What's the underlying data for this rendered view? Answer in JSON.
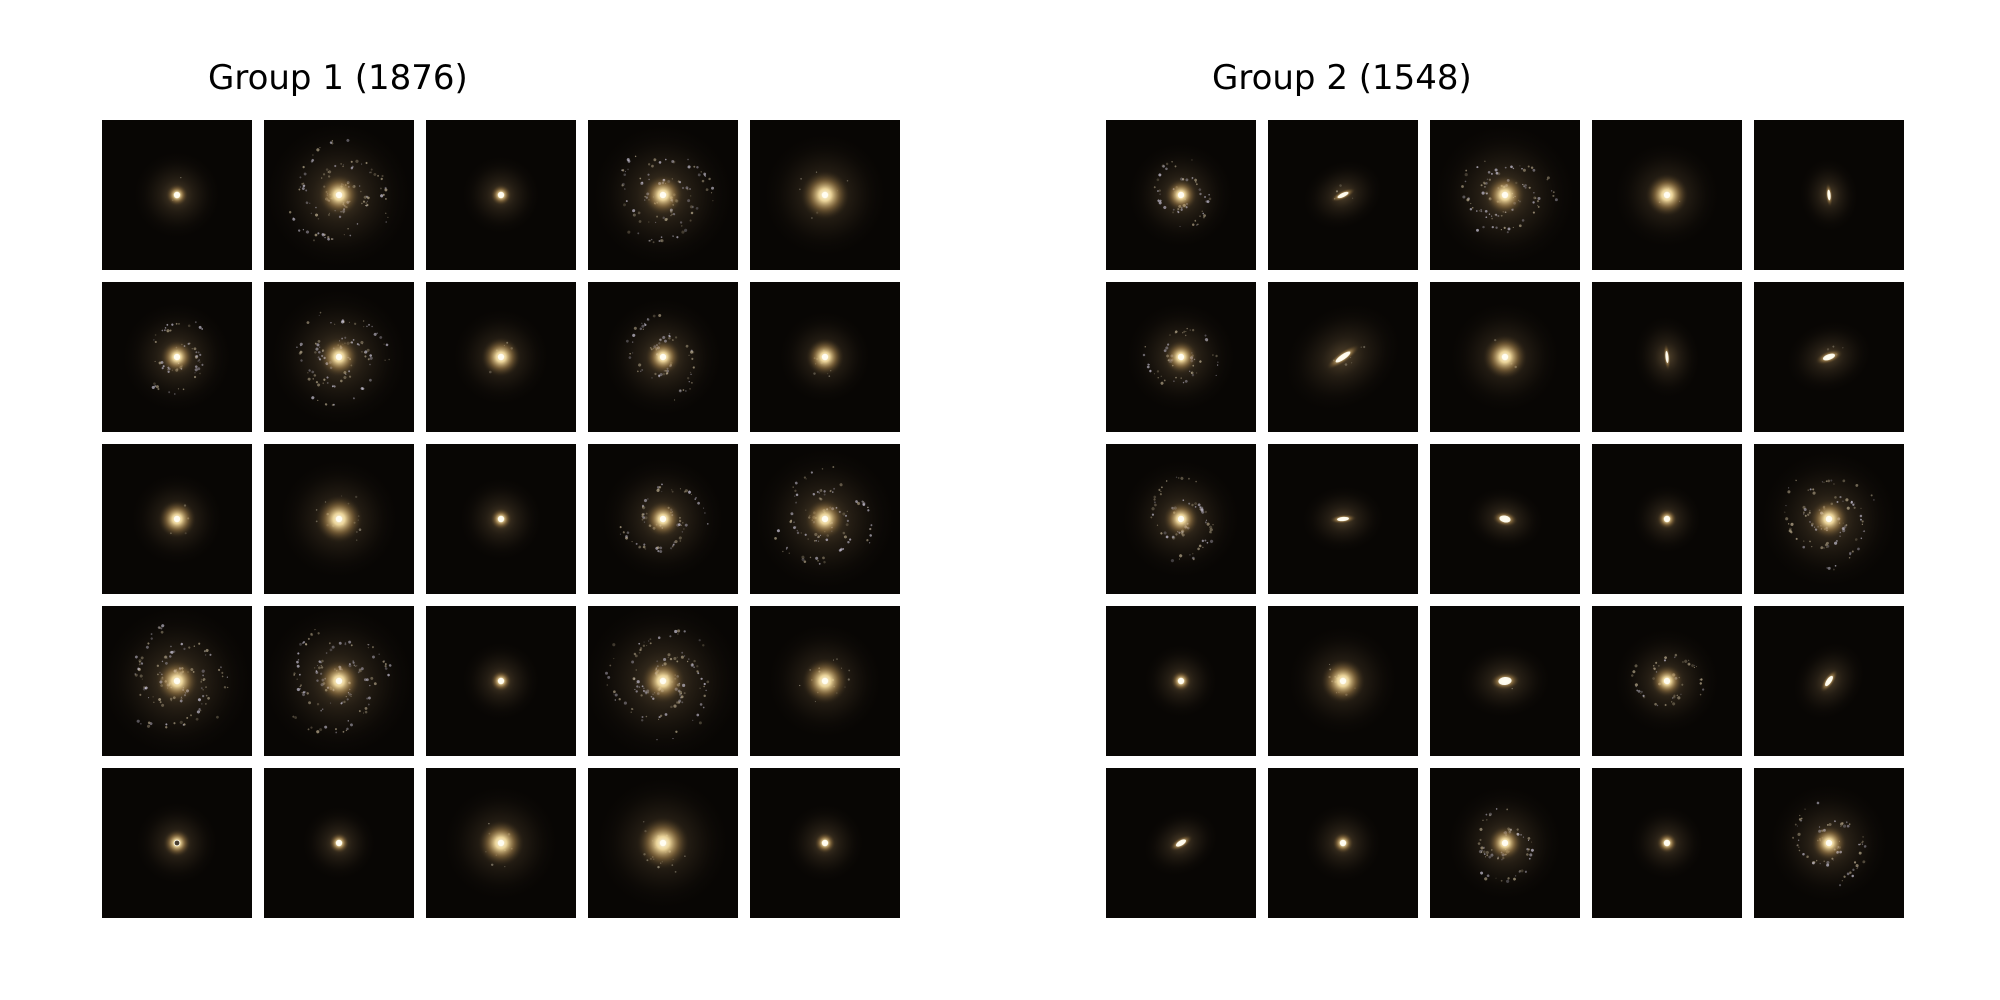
{
  "groups": [
    {
      "title": "Group 1 (1876)",
      "tiles": [
        {
          "type": "compact",
          "size": 0.5,
          "arms": 0,
          "tilt": 0,
          "angle": 0,
          "dust": 0.1
        },
        {
          "type": "spiral",
          "size": 1.15,
          "arms": 3,
          "tilt": 0.0,
          "angle": 35,
          "dust": 1.0
        },
        {
          "type": "compact",
          "size": 0.4,
          "arms": 0,
          "tilt": 0,
          "angle": 0,
          "dust": 0.0
        },
        {
          "type": "spiral",
          "size": 1.1,
          "arms": 3,
          "tilt": 0.0,
          "angle": 10,
          "dust": 0.9
        },
        {
          "type": "halo",
          "size": 0.9,
          "arms": 0,
          "tilt": 0,
          "angle": 0,
          "dust": 0.2
        },
        {
          "type": "spiral",
          "size": 0.75,
          "arms": 2,
          "tilt": 0.0,
          "angle": 70,
          "dust": 0.8
        },
        {
          "type": "spiral",
          "size": 1.05,
          "arms": 3,
          "tilt": 0.0,
          "angle": 120,
          "dust": 0.9
        },
        {
          "type": "halo",
          "size": 0.6,
          "arms": 0,
          "tilt": 0,
          "angle": 0,
          "dust": 0.2
        },
        {
          "type": "spiral",
          "size": 0.85,
          "arms": 2,
          "tilt": 0.0,
          "angle": 200,
          "dust": 0.8
        },
        {
          "type": "halo",
          "size": 0.55,
          "arms": 0,
          "tilt": 0,
          "angle": 0,
          "dust": 0.4
        },
        {
          "type": "halo",
          "size": 0.55,
          "arms": 0,
          "tilt": 0,
          "angle": 0,
          "dust": 0.2
        },
        {
          "type": "halo",
          "size": 0.85,
          "arms": 0,
          "tilt": 0,
          "angle": 0,
          "dust": 0.5
        },
        {
          "type": "compact",
          "size": 0.45,
          "arms": 0,
          "tilt": 0,
          "angle": 0,
          "dust": 0.0
        },
        {
          "type": "spiral",
          "size": 0.9,
          "arms": 2,
          "tilt": 0.0,
          "angle": 300,
          "dust": 0.8
        },
        {
          "type": "spiral",
          "size": 1.1,
          "arms": 3,
          "tilt": 0.0,
          "angle": 160,
          "dust": 0.9
        },
        {
          "type": "spiral",
          "size": 1.2,
          "arms": 3,
          "tilt": 0.0,
          "angle": 30,
          "dust": 1.0
        },
        {
          "type": "spiral",
          "size": 1.2,
          "arms": 3,
          "tilt": 0.0,
          "angle": 250,
          "dust": 1.0
        },
        {
          "type": "compact",
          "size": 0.4,
          "arms": 0,
          "tilt": 0,
          "angle": 0,
          "dust": 0.0
        },
        {
          "type": "spiral",
          "size": 1.3,
          "arms": 3,
          "tilt": 0.0,
          "angle": 90,
          "dust": 1.0
        },
        {
          "type": "halo",
          "size": 0.8,
          "arms": 0,
          "tilt": 0,
          "angle": 0,
          "dust": 0.5
        },
        {
          "type": "ring",
          "size": 0.45,
          "arms": 0,
          "tilt": 0,
          "angle": 0,
          "dust": 0.0
        },
        {
          "type": "compact",
          "size": 0.35,
          "arms": 0,
          "tilt": 0,
          "angle": 0,
          "dust": 0.0
        },
        {
          "type": "halo",
          "size": 0.8,
          "arms": 0,
          "tilt": 0,
          "angle": 0,
          "dust": 0.3
        },
        {
          "type": "halo",
          "size": 1.0,
          "arms": 0,
          "tilt": 0,
          "angle": 0,
          "dust": 0.5
        },
        {
          "type": "compact",
          "size": 0.4,
          "arms": 0,
          "tilt": 0,
          "angle": 0,
          "dust": 0.0
        }
      ]
    },
    {
      "title": "Group 2 (1548)",
      "tiles": [
        {
          "type": "spiral",
          "size": 0.7,
          "arms": 2,
          "tilt": 0.0,
          "angle": 40,
          "dust": 0.8
        },
        {
          "type": "edge",
          "size": 0.45,
          "arms": 0,
          "tilt": 0.35,
          "angle": -25,
          "dust": 0.2
        },
        {
          "type": "spiral",
          "size": 1.1,
          "arms": 3,
          "tilt": 0.6,
          "angle": 0,
          "dust": 0.9
        },
        {
          "type": "halo",
          "size": 0.7,
          "arms": 0,
          "tilt": 0,
          "angle": 0,
          "dust": 0.1
        },
        {
          "type": "edge",
          "size": 0.35,
          "arms": 0,
          "tilt": 0.3,
          "angle": 85,
          "dust": 0.0
        },
        {
          "type": "spiral",
          "size": 0.75,
          "arms": 2,
          "tilt": 0.0,
          "angle": 140,
          "dust": 0.7
        },
        {
          "type": "edge",
          "size": 0.9,
          "arms": 0,
          "tilt": 0.3,
          "angle": -35,
          "dust": 0.2
        },
        {
          "type": "halo",
          "size": 0.75,
          "arms": 0,
          "tilt": 0,
          "angle": 0,
          "dust": 0.1
        },
        {
          "type": "edge",
          "size": 0.45,
          "arms": 0,
          "tilt": 0.25,
          "angle": 85,
          "dust": 0.0
        },
        {
          "type": "edge",
          "size": 0.5,
          "arms": 0,
          "tilt": 0.45,
          "angle": -20,
          "dust": 0.2
        },
        {
          "type": "spiral",
          "size": 0.85,
          "arms": 2,
          "tilt": 0.0,
          "angle": 220,
          "dust": 0.8
        },
        {
          "type": "edge",
          "size": 0.45,
          "arms": 0,
          "tilt": 0.35,
          "angle": -5,
          "dust": 0.0
        },
        {
          "type": "edge",
          "size": 0.4,
          "arms": 0,
          "tilt": 0.6,
          "angle": 10,
          "dust": 0.0
        },
        {
          "type": "compact",
          "size": 0.3,
          "arms": 0,
          "tilt": 0,
          "angle": 0,
          "dust": 0.0
        },
        {
          "type": "spiral",
          "size": 1.05,
          "arms": 3,
          "tilt": 0.0,
          "angle": 100,
          "dust": 0.9
        },
        {
          "type": "compact",
          "size": 0.35,
          "arms": 0,
          "tilt": 0,
          "angle": 0,
          "dust": 0.0
        },
        {
          "type": "halo",
          "size": 0.75,
          "arms": 0,
          "tilt": 0,
          "angle": 0,
          "dust": 0.4
        },
        {
          "type": "edge",
          "size": 0.55,
          "arms": 0,
          "tilt": 0.6,
          "angle": -5,
          "dust": 0.1
        },
        {
          "type": "spiral",
          "size": 0.7,
          "arms": 2,
          "tilt": 0.0,
          "angle": 320,
          "dust": 0.7
        },
        {
          "type": "edge",
          "size": 0.45,
          "arms": 0,
          "tilt": 0.4,
          "angle": -55,
          "dust": 0.0
        },
        {
          "type": "edge",
          "size": 0.4,
          "arms": 0,
          "tilt": 0.45,
          "angle": -30,
          "dust": 0.0
        },
        {
          "type": "compact",
          "size": 0.4,
          "arms": 0,
          "tilt": 0,
          "angle": 0,
          "dust": 0.0
        },
        {
          "type": "spiral",
          "size": 0.8,
          "arms": 2,
          "tilt": 0.0,
          "angle": 60,
          "dust": 0.8
        },
        {
          "type": "compact",
          "size": 0.35,
          "arms": 0,
          "tilt": 0,
          "angle": 0,
          "dust": 0.0
        },
        {
          "type": "spiral",
          "size": 0.85,
          "arms": 2,
          "tilt": 0.0,
          "angle": 190,
          "dust": 0.8
        }
      ]
    }
  ]
}
